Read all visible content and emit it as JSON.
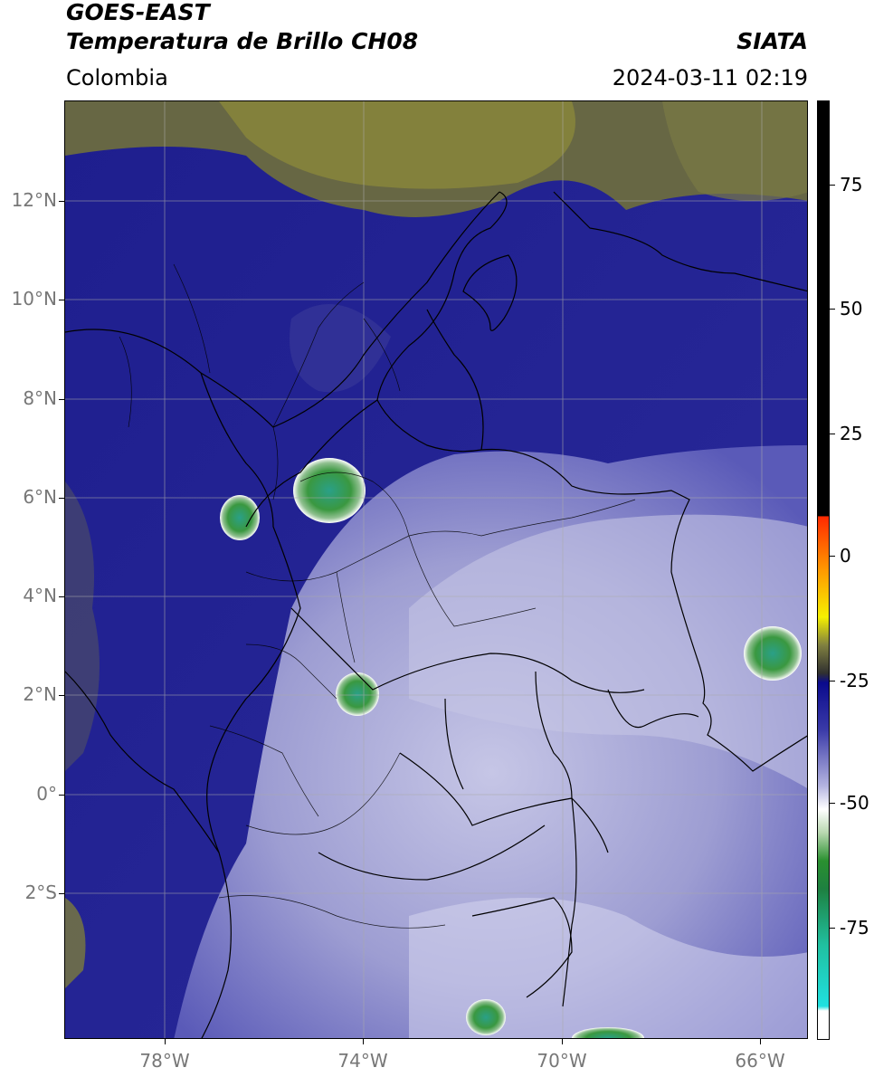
{
  "header": {
    "satellite": "GOES-EAST",
    "product": "Temperatura de Brillo CH08",
    "region": "Colombia",
    "brand": "SIATA",
    "datetime": "2024-03-11 02:19"
  },
  "map": {
    "lat_labels": [
      "12°N",
      "10°N",
      "8°N",
      "6°N",
      "4°N",
      "2°N",
      "0°",
      "2°S"
    ],
    "lon_labels": [
      "78°W",
      "74°W",
      "70°W",
      "66°W"
    ],
    "lon_range": [
      -80,
      -65
    ],
    "lat_range": [
      -5,
      14
    ],
    "gridlines": true
  },
  "colorbar": {
    "tick_labels": [
      "75",
      "50",
      "25",
      "0",
      "-25",
      "-50",
      "-75"
    ],
    "range": [
      -95,
      90
    ],
    "colors": {
      "black": "#000000",
      "red": "#ff2a00",
      "orange": "#ff9900",
      "yellow": "#f5f000",
      "olive": "#808040",
      "navy": "#0a0a8c",
      "lavender": "#b4b4e0",
      "white": "#ffffff",
      "green": "#2a9030",
      "teal": "#20c0a0",
      "cyan": "#20e0e0"
    }
  }
}
